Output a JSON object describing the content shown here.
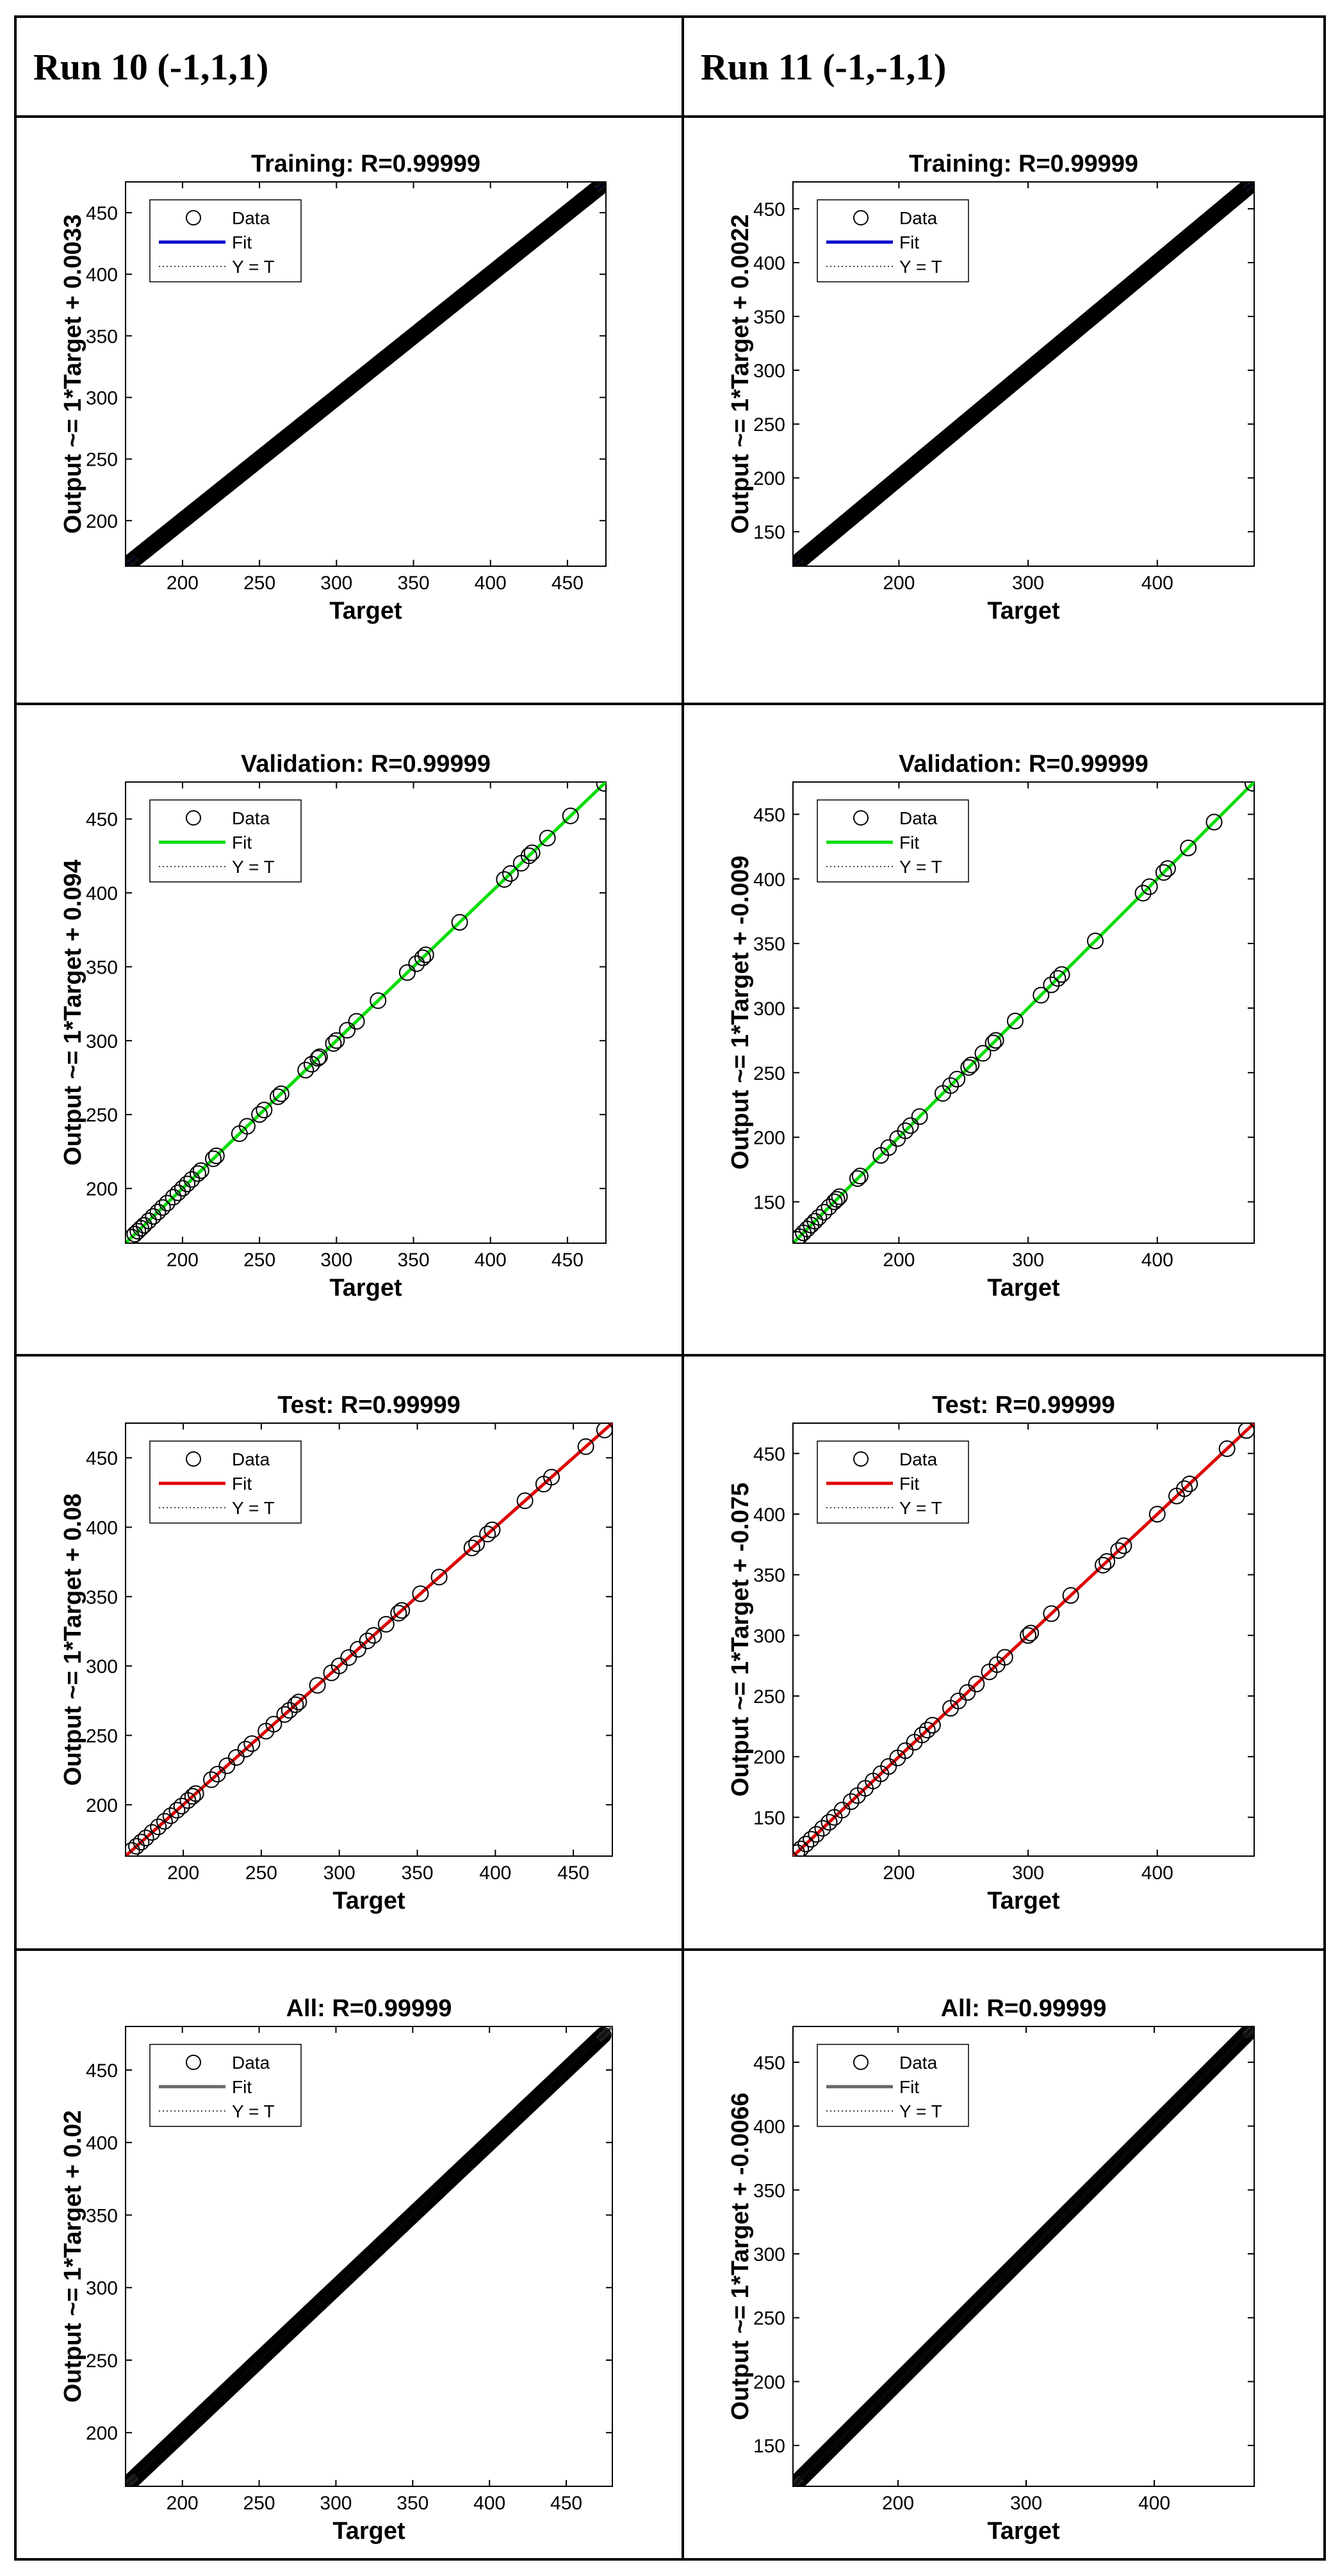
{
  "headers": {
    "col1": "Run 10 (-1,1,1)",
    "col2": "Run 11 (-1,-1,1)"
  },
  "legend": {
    "data": "Data",
    "fit": "Fit",
    "yt": "Y = T"
  },
  "colors": {
    "training": "#0000cc",
    "validation": "#00dd00",
    "test": "#dd0000",
    "all": "#666666",
    "marker": "#000000"
  },
  "chart_data": [
    {
      "id": "run10-training",
      "type": "scatter",
      "column": "Run 10 (-1,1,1)",
      "title": "Training: R=0.99999",
      "xlabel": "Target",
      "ylabel": "Output ~= 1*Target + 0.0033",
      "xlim": [
        163,
        475
      ],
      "ylim": [
        163,
        475
      ],
      "xticks": [
        200,
        250,
        300,
        350,
        400,
        450
      ],
      "yticks": [
        200,
        250,
        300,
        350,
        400,
        450
      ],
      "fit": {
        "slope": 1,
        "intercept": 0.0033
      },
      "fit_color": "blue",
      "legend": [
        "Data",
        "Fit",
        "Y = T"
      ],
      "points": "dense",
      "range": [
        167,
        472
      ]
    },
    {
      "id": "run11-training",
      "type": "scatter",
      "column": "Run 11 (-1,-1,1)",
      "title": "Training: R=0.99999",
      "xlabel": "Target",
      "ylabel": "Output ~= 1*Target + 0.0022",
      "xlim": [
        118,
        475
      ],
      "ylim": [
        118,
        475
      ],
      "xticks": [
        200,
        300,
        400
      ],
      "yticks": [
        150,
        200,
        250,
        300,
        350,
        400,
        450
      ],
      "fit": {
        "slope": 1,
        "intercept": 0.0022
      },
      "fit_color": "blue",
      "legend": [
        "Data",
        "Fit",
        "Y = T"
      ],
      "points": "dense",
      "range": [
        121,
        472
      ]
    },
    {
      "id": "run10-validation",
      "type": "scatter",
      "column": "Run 10 (-1,1,1)",
      "title": "Validation: R=0.99999",
      "xlabel": "Target",
      "ylabel": "Output ~= 1*Target + 0.094",
      "xlim": [
        163,
        475
      ],
      "ylim": [
        163,
        475
      ],
      "xticks": [
        200,
        250,
        300,
        350,
        400,
        450
      ],
      "yticks": [
        200,
        250,
        300,
        350,
        400,
        450
      ],
      "fit": {
        "slope": 1,
        "intercept": 0.094
      },
      "fit_color": "green",
      "legend": [
        "Data",
        "Fit",
        "Y = T"
      ],
      "points": [
        167,
        169,
        171,
        173,
        175,
        178,
        181,
        184,
        187,
        190,
        194,
        197,
        200,
        203,
        206,
        210,
        212,
        220,
        222,
        237,
        242,
        250,
        253,
        262,
        264,
        280,
        284,
        288,
        289,
        298,
        300,
        307,
        313,
        327,
        346,
        352,
        356,
        358,
        380,
        409,
        413,
        420,
        425,
        427,
        437,
        452,
        474
      ]
    },
    {
      "id": "run11-validation",
      "type": "scatter",
      "column": "Run 11 (-1,-1,1)",
      "title": "Validation: R=0.99999",
      "xlabel": "Target",
      "ylabel": "Output ~= 1*Target + -0.009",
      "xlim": [
        118,
        475
      ],
      "ylim": [
        118,
        475
      ],
      "xticks": [
        200,
        300,
        400
      ],
      "yticks": [
        150,
        200,
        250,
        300,
        350,
        400,
        450
      ],
      "fit": {
        "slope": 1,
        "intercept": -0.009
      },
      "fit_color": "green",
      "legend": [
        "Data",
        "Fit",
        "Y = T"
      ],
      "points": [
        121,
        123,
        126,
        129,
        132,
        135,
        138,
        142,
        146,
        150,
        152,
        154,
        168,
        170,
        186,
        192,
        199,
        205,
        209,
        216,
        234,
        240,
        245,
        254,
        256,
        265,
        273,
        275,
        290,
        310,
        318,
        323,
        326,
        352,
        389,
        394,
        405,
        408,
        424,
        444,
        474
      ]
    },
    {
      "id": "run10-test",
      "type": "scatter",
      "column": "Run 10 (-1,1,1)",
      "title": "Test: R=0.99999",
      "xlabel": "Target",
      "ylabel": "Output ~= 1*Target + 0.08",
      "xlim": [
        163,
        475
      ],
      "ylim": [
        163,
        475
      ],
      "xticks": [
        200,
        250,
        300,
        350,
        400,
        450
      ],
      "yticks": [
        200,
        250,
        300,
        350,
        400,
        450
      ],
      "fit": {
        "slope": 1,
        "intercept": 0.08
      },
      "fit_color": "red",
      "legend": [
        "Data",
        "Fit",
        "Y = T"
      ],
      "points": [
        167,
        170,
        173,
        176,
        180,
        184,
        188,
        192,
        196,
        199,
        203,
        206,
        208,
        218,
        222,
        228,
        234,
        240,
        244,
        253,
        258,
        265,
        268,
        272,
        274,
        286,
        295,
        300,
        306,
        312,
        318,
        322,
        330,
        338,
        340,
        352,
        364,
        385,
        388,
        395,
        398,
        419,
        431,
        436,
        458,
        470
      ]
    },
    {
      "id": "run11-test",
      "type": "scatter",
      "column": "Run 11 (-1,-1,1)",
      "title": "Test: R=0.99999",
      "xlabel": "Target",
      "ylabel": "Output ~= 1*Target + -0.075",
      "xlim": [
        118,
        475
      ],
      "ylim": [
        118,
        475
      ],
      "xticks": [
        200,
        300,
        400
      ],
      "yticks": [
        150,
        200,
        250,
        300,
        350,
        400,
        450
      ],
      "fit": {
        "slope": 1,
        "intercept": -0.075
      },
      "fit_color": "red",
      "legend": [
        "Data",
        "Fit",
        "Y = T"
      ],
      "points": [
        121,
        124,
        128,
        132,
        136,
        141,
        146,
        150,
        156,
        163,
        168,
        174,
        180,
        186,
        192,
        199,
        205,
        212,
        218,
        222,
        226,
        240,
        246,
        253,
        260,
        270,
        276,
        282,
        300,
        302,
        318,
        333,
        358,
        361,
        370,
        374,
        400,
        415,
        421,
        425,
        454,
        469
      ]
    },
    {
      "id": "run10-all",
      "type": "scatter",
      "column": "Run 10 (-1,1,1)",
      "title": "All: R=0.99999",
      "xlabel": "Target",
      "ylabel": "Output ~= 1*Target + 0.02",
      "xlim": [
        163,
        480
      ],
      "ylim": [
        163,
        480
      ],
      "xticks": [
        200,
        250,
        300,
        350,
        400,
        450
      ],
      "yticks": [
        200,
        250,
        300,
        350,
        400,
        450
      ],
      "fit": {
        "slope": 1,
        "intercept": 0.02
      },
      "fit_color": "gray",
      "legend": [
        "Data",
        "Fit",
        "Y = T"
      ],
      "points": "dense",
      "range": [
        167,
        474
      ]
    },
    {
      "id": "run11-all",
      "type": "scatter",
      "column": "Run 11 (-1,-1,1)",
      "title": "All: R=0.99999",
      "xlabel": "Target",
      "ylabel": "Output ~= 1*Target + -0.0066",
      "xlim": [
        118,
        478
      ],
      "ylim": [
        118,
        478
      ],
      "xticks": [
        200,
        300,
        400
      ],
      "yticks": [
        150,
        200,
        250,
        300,
        350,
        400,
        450
      ],
      "fit": {
        "slope": 1,
        "intercept": -0.0066
      },
      "fit_color": "gray",
      "legend": [
        "Data",
        "Fit",
        "Y = T"
      ],
      "points": "dense",
      "range": [
        121,
        474
      ]
    }
  ]
}
